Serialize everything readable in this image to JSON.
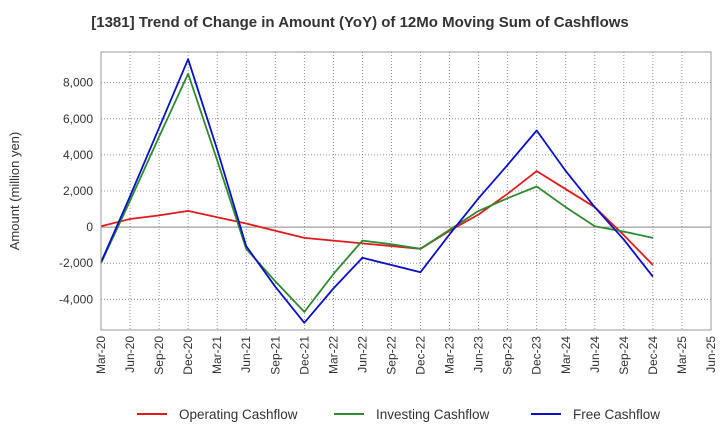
{
  "chart_data": {
    "type": "line",
    "title": "[1381]  Trend of Change in Amount (YoY) of 12Mo Moving Sum of Cashflows",
    "xlabel": "",
    "ylabel": "Amount (million yen)",
    "ylim": [
      -5700,
      9700
    ],
    "yticks": [
      -4000,
      -2000,
      0,
      2000,
      4000,
      6000,
      8000
    ],
    "ytick_labels": [
      "-4,000",
      "-2,000",
      "0",
      "2,000",
      "4,000",
      "6,000",
      "8,000"
    ],
    "categories": [
      "Mar-20",
      "Jun-20",
      "Sep-20",
      "Dec-20",
      "Mar-21",
      "Jun-21",
      "Sep-21",
      "Dec-21",
      "Mar-22",
      "Jun-22",
      "Sep-22",
      "Dec-22",
      "Mar-23",
      "Jun-23",
      "Sep-23",
      "Dec-23",
      "Mar-24",
      "Jun-24",
      "Sep-24",
      "Dec-24",
      "Mar-25",
      "Jun-25"
    ],
    "grid": true,
    "legend_position": "bottom",
    "series": [
      {
        "name": "Operating Cashflow",
        "color": "#e31a1c",
        "values": [
          50,
          450,
          650,
          900,
          550,
          200,
          -200,
          -600,
          -750,
          -900,
          -1050,
          -1200,
          -200,
          700,
          1850,
          3100,
          2100,
          1100,
          -450,
          -2100,
          null,
          null
        ]
      },
      {
        "name": "Investing Cashflow",
        "color": "#2e8b2e",
        "values": [
          -2000,
          1450,
          5000,
          8500,
          3700,
          -1200,
          -3000,
          -4700,
          -2600,
          -750,
          -950,
          -1200,
          -150,
          900,
          1600,
          2250,
          1100,
          50,
          -250,
          -600,
          null,
          null
        ]
      },
      {
        "name": "Free Cashflow",
        "color": "#0a10c8",
        "values": [
          -1950,
          1700,
          5500,
          9300,
          4300,
          -1050,
          -3300,
          -5300,
          -3400,
          -1700,
          -2100,
          -2500,
          -400,
          1600,
          3450,
          5350,
          3100,
          1100,
          -700,
          -2750,
          null,
          null
        ]
      }
    ]
  }
}
